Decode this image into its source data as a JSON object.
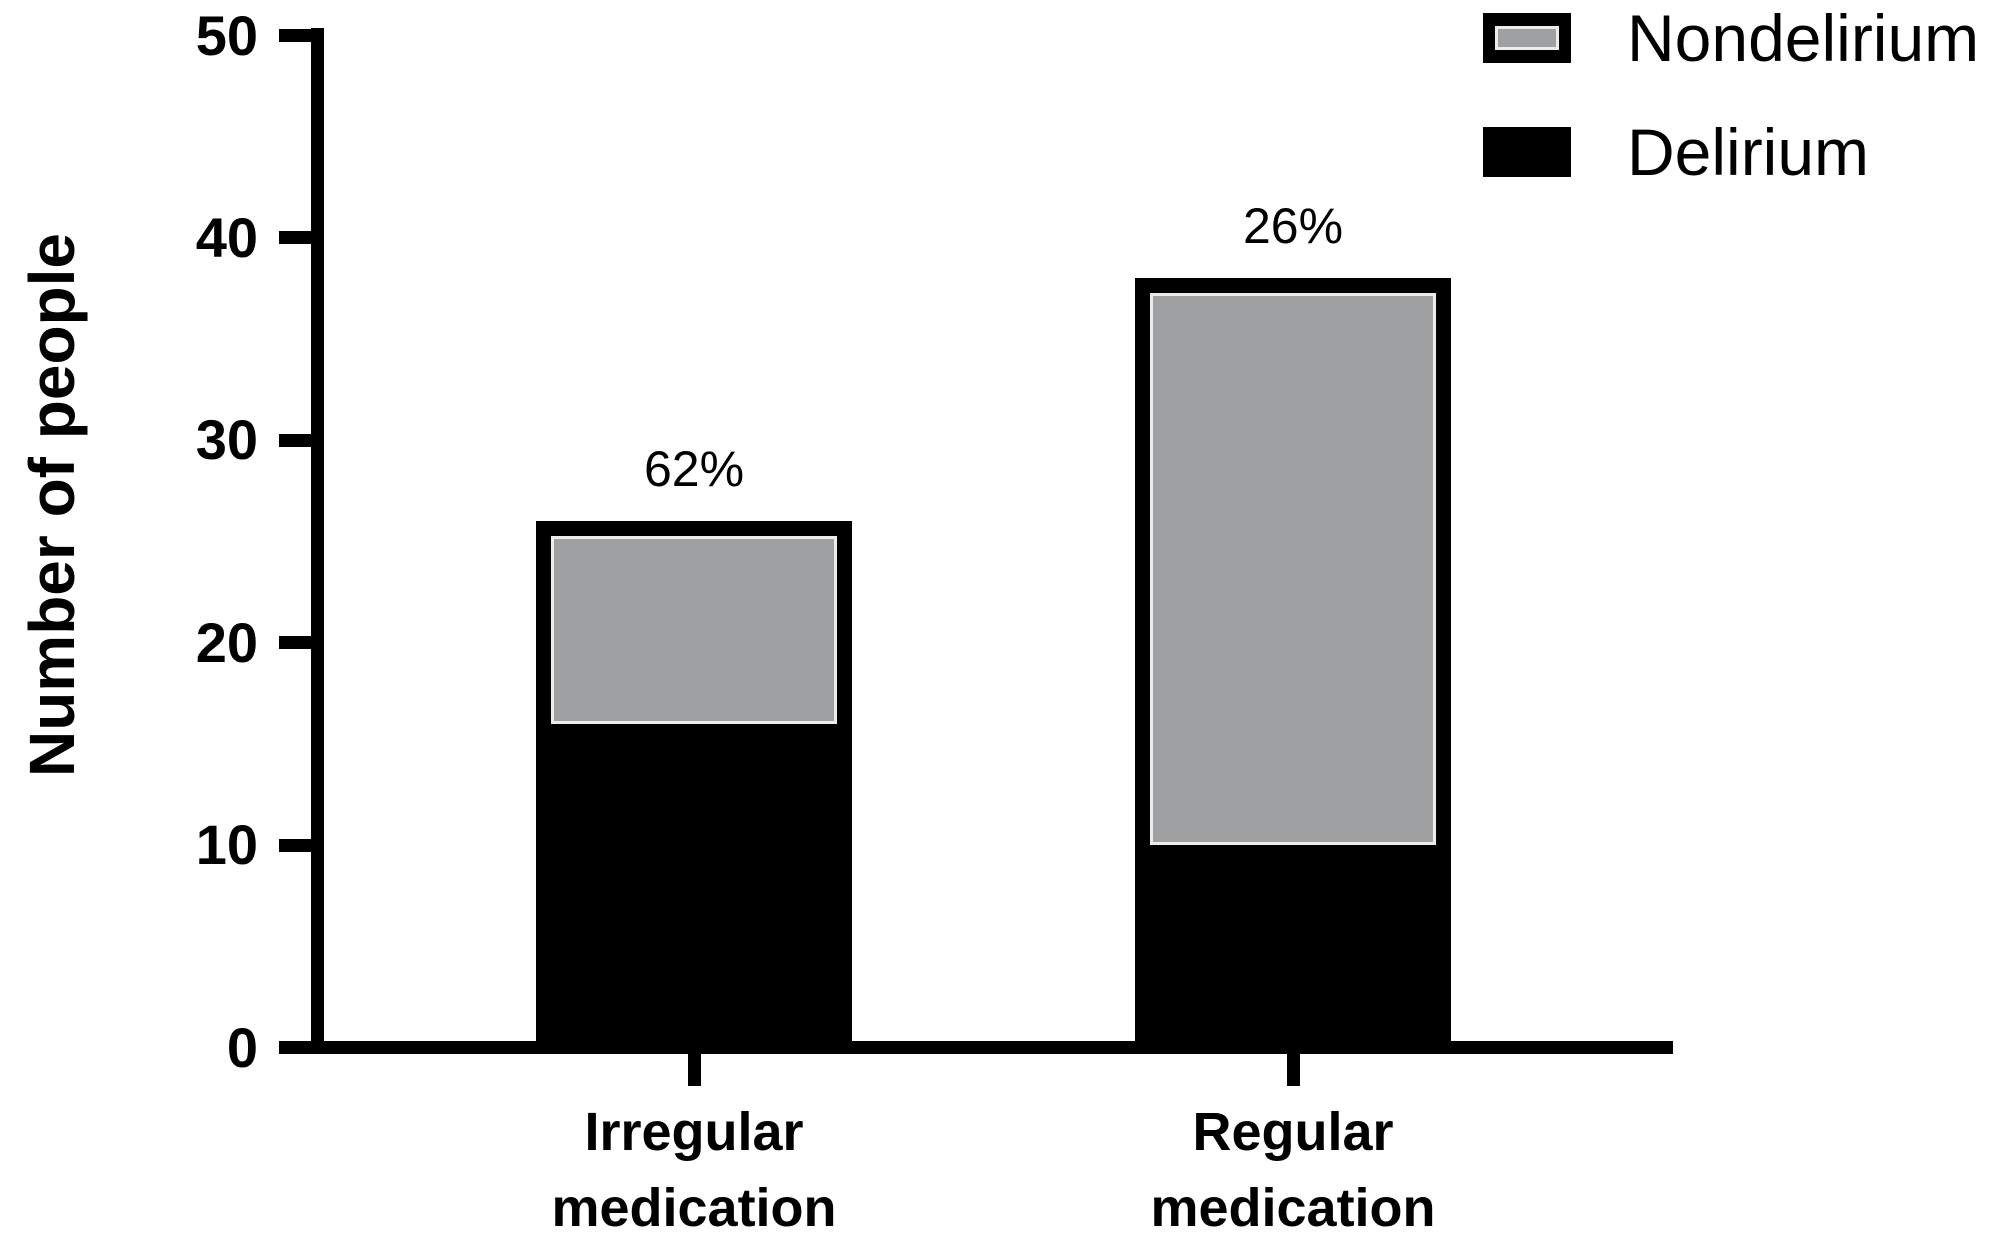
{
  "chart_data": {
    "type": "bar",
    "stacked": true,
    "title": "",
    "ylabel": "Number of people",
    "ylim": [
      0,
      50
    ],
    "yticks": [
      0,
      10,
      20,
      30,
      40,
      50
    ],
    "categories": [
      "Irregular medication",
      "Regular medication"
    ],
    "series": [
      {
        "name": "Delirium",
        "color": "#000000",
        "values": [
          16,
          10
        ]
      },
      {
        "name": "Nondelirium",
        "color": "#9fa0a2",
        "values": [
          10,
          28
        ]
      }
    ],
    "totals": [
      26,
      38
    ],
    "bar_labels": [
      "62%",
      "26%"
    ],
    "legend": [
      {
        "label": "Nondelirium",
        "swatch": "gray-fill-black-border"
      },
      {
        "label": "Delirium",
        "swatch": "solid-black"
      }
    ],
    "legend_position": "top-right",
    "grid": false
  },
  "colors": {
    "background": "#ffffff",
    "axis": "#000000",
    "text": "#000000",
    "bar_border": "#000000",
    "delirium_fill": "#000000",
    "nondelirium_fill": "#9fa0a2",
    "nondelirium_stroke": "#ececec"
  }
}
